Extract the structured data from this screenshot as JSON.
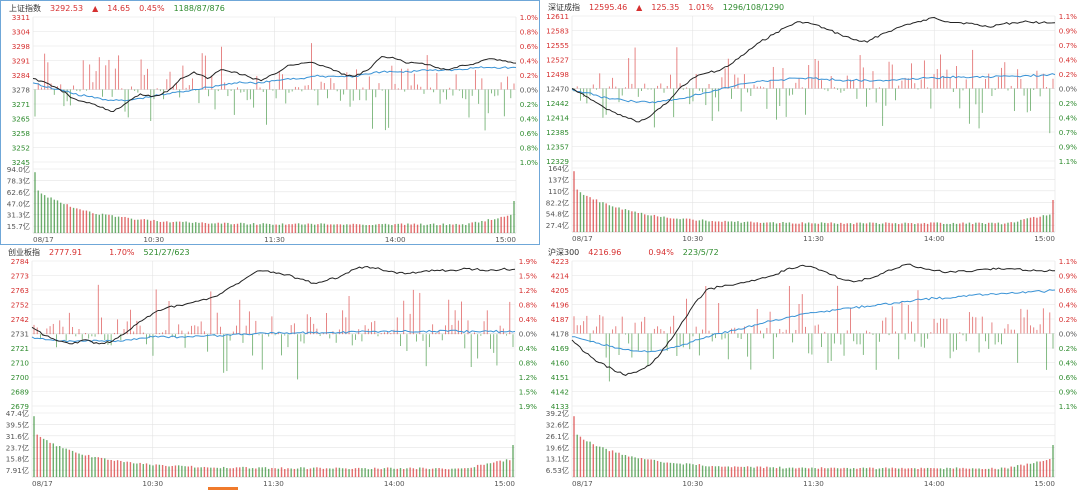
{
  "colors": {
    "up": "#d63030",
    "down": "#2e8b2e",
    "price": "#222222",
    "avg": "#3a93d6",
    "grid": "#e3e3e3"
  },
  "chart_data": [
    {
      "type": "line",
      "title": "上证指数",
      "header": {
        "price": "3292.53",
        "arrow": "▲",
        "change": "14.65",
        "percent": "0.45%",
        "ad": "1188/87/876"
      },
      "price_ticks": [
        "3311",
        "3304",
        "3298",
        "3291",
        "3284",
        "3278",
        "3271",
        "3265",
        "3258",
        "3252",
        "3245"
      ],
      "pct_ticks": [
        "1.0%",
        "0.8%",
        "0.6%",
        "0.4%",
        "0.2%",
        "0.0%",
        "0.2%",
        "0.4%",
        "0.6%",
        "0.8%",
        "1.0%"
      ],
      "vol_ticks": [
        "94.0亿",
        "78.3亿",
        "62.6亿",
        "47.0亿",
        "31.3亿",
        "15.7亿"
      ],
      "time_ticks": [
        "08/17",
        "10:30",
        "11:30",
        "14:00",
        "15:00"
      ],
      "ylim": [
        3245,
        3311
      ],
      "vmax": 94.0,
      "prev_close": 3278,
      "price": [
        3283,
        3281,
        3278,
        3274,
        3272,
        3270,
        3268,
        3272,
        3276,
        3275,
        3277,
        3283,
        3286,
        3283,
        3287,
        3286,
        3284,
        3282,
        3285,
        3289,
        3290,
        3290,
        3288,
        3285,
        3284,
        3287,
        3293,
        3292,
        3290,
        3290,
        3288,
        3287,
        3289,
        3290,
        3292,
        3291,
        3290
      ],
      "avg": [
        3281,
        3279,
        3278,
        3276,
        3275,
        3274,
        3273,
        3273,
        3274,
        3275,
        3276,
        3277,
        3278,
        3279,
        3280,
        3281,
        3281,
        3281,
        3282,
        3283,
        3283,
        3284,
        3284,
        3284,
        3284,
        3285,
        3286,
        3286,
        3286,
        3287,
        3287,
        3287,
        3287,
        3288,
        3288,
        3288,
        3288
      ]
    },
    {
      "type": "line",
      "title": "深证成指",
      "header": {
        "price": "12595.46",
        "arrow": "▲",
        "change": "125.35",
        "percent": "1.01%",
        "ad": "1296/108/1290"
      },
      "price_ticks": [
        "12611",
        "12583",
        "12555",
        "12527",
        "12498",
        "12470",
        "12442",
        "12414",
        "12385",
        "12357",
        "12329"
      ],
      "pct_ticks": [
        "1.1%",
        "0.9%",
        "0.7%",
        "0.4%",
        "0.2%",
        "0.0%",
        "0.2%",
        "0.4%",
        "0.7%",
        "0.9%",
        "1.1%"
      ],
      "vol_ticks": [
        "164亿",
        "137亿",
        "110亿",
        "82.2亿",
        "54.8亿",
        "27.4亿"
      ],
      "time_ticks": [
        "08/17",
        "10:30",
        "11:30",
        "14:00",
        "15:00"
      ],
      "ylim": [
        12329,
        12611
      ],
      "vmax": 164,
      "prev_close": 12470,
      "price": [
        12470,
        12455,
        12440,
        12425,
        12415,
        12405,
        12420,
        12440,
        12470,
        12490,
        12500,
        12505,
        12520,
        12540,
        12560,
        12575,
        12590,
        12600,
        12595,
        12585,
        12575,
        12565,
        12560,
        12575,
        12585,
        12595,
        12600,
        12608,
        12600,
        12598,
        12595,
        12590,
        12595,
        12598,
        12600,
        12598,
        12598
      ],
      "avg": [
        12468,
        12462,
        12455,
        12450,
        12446,
        12444,
        12444,
        12446,
        12450,
        12456,
        12462,
        12468,
        12474,
        12480,
        12484,
        12486,
        12488,
        12490,
        12490,
        12488,
        12486,
        12486,
        12486,
        12486,
        12487,
        12488,
        12490,
        12491,
        12492,
        12492,
        12493,
        12493,
        12494,
        12494,
        12495,
        12496,
        12497
      ]
    },
    {
      "type": "line",
      "title": "创业板指",
      "header": {
        "price": "2777.91",
        "arrow": "",
        "change": "",
        "percent": "1.70%",
        "ad": "521/27/623"
      },
      "price_ticks": [
        "2784",
        "2773",
        "2763",
        "2752",
        "2742",
        "2731",
        "2721",
        "2710",
        "2700",
        "2689",
        "2679"
      ],
      "pct_ticks": [
        "1.9%",
        "1.5%",
        "1.2%",
        "0.8%",
        "0.4%",
        "0.0%",
        "0.4%",
        "0.8%",
        "1.2%",
        "1.5%",
        "1.9%"
      ],
      "vol_ticks": [
        "47.4亿",
        "39.5亿",
        "31.6亿",
        "23.7亿",
        "15.8亿",
        "7.91亿"
      ],
      "time_ticks": [
        "08/17",
        "10:30",
        "11:30",
        "14:00",
        "15:00"
      ],
      "ylim": [
        2679,
        2784
      ],
      "vmax": 47.4,
      "prev_close": 2731,
      "price": [
        2736,
        2730,
        2726,
        2724,
        2727,
        2724,
        2726,
        2732,
        2740,
        2746,
        2750,
        2752,
        2754,
        2756,
        2760,
        2766,
        2772,
        2777,
        2776,
        2774,
        2771,
        2768,
        2770,
        2773,
        2778,
        2780,
        2778,
        2776,
        2775,
        2776,
        2777,
        2777,
        2778,
        2778,
        2777,
        2778,
        2778
      ],
      "avg": [
        2729,
        2727,
        2726,
        2726,
        2726,
        2726,
        2726,
        2727,
        2728,
        2729,
        2729,
        2729,
        2729,
        2730,
        2730,
        2731,
        2731,
        2732,
        2732,
        2732,
        2732,
        2732,
        2732,
        2732,
        2733,
        2733,
        2733,
        2733,
        2733,
        2733,
        2733,
        2733,
        2733,
        2733,
        2733,
        2733,
        2733
      ]
    },
    {
      "type": "line",
      "title": "沪深300",
      "header": {
        "price": "4216.96",
        "arrow": "",
        "change": "",
        "percent": "0.94%",
        "ad": "223/5/72"
      },
      "price_ticks": [
        "4223",
        "4214",
        "4205",
        "4196",
        "4187",
        "4178",
        "4169",
        "4160",
        "4151",
        "4142",
        "4133"
      ],
      "pct_ticks": [
        "1.1%",
        "0.9%",
        "0.6%",
        "0.4%",
        "0.2%",
        "0.0%",
        "0.2%",
        "0.4%",
        "0.6%",
        "0.9%",
        "1.1%"
      ],
      "vol_ticks": [
        "39.2亿",
        "32.6亿",
        "26.1亿",
        "19.6亿",
        "13.1亿",
        "6.53亿"
      ],
      "time_ticks": [
        "08/17",
        "10:30",
        "11:30",
        "14:00",
        "15:00"
      ],
      "ylim": [
        4133,
        4223
      ],
      "vmax": 39.2,
      "prev_close": 4178,
      "price": [
        4174,
        4166,
        4160,
        4156,
        4152,
        4155,
        4160,
        4170,
        4182,
        4195,
        4205,
        4207,
        4208,
        4210,
        4212,
        4214,
        4218,
        4220,
        4219,
        4216,
        4212,
        4210,
        4212,
        4215,
        4218,
        4221,
        4219,
        4217,
        4216,
        4217,
        4217,
        4218,
        4218,
        4218,
        4217,
        4217,
        4217
      ],
      "avg": [
        4176,
        4174,
        4172,
        4170,
        4168,
        4167,
        4167,
        4168,
        4170,
        4173,
        4176,
        4178,
        4180,
        4182,
        4184,
        4186,
        4188,
        4190,
        4191,
        4192,
        4193,
        4194,
        4195,
        4196,
        4197,
        4198,
        4199,
        4200,
        4200,
        4201,
        4202,
        4202,
        4203,
        4203,
        4204,
        4204,
        4205
      ]
    }
  ]
}
